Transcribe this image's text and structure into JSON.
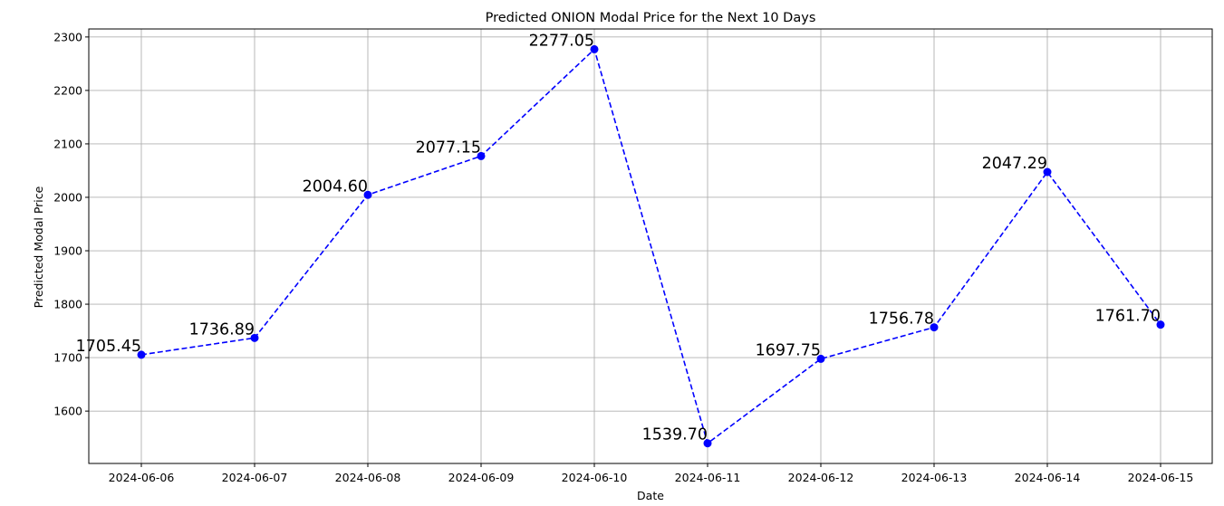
{
  "chart_data": {
    "type": "line",
    "title": "Predicted ONION Modal Price for the Next 10 Days",
    "xlabel": "Date",
    "ylabel": "Predicted Modal Price",
    "categories": [
      "2024-06-06",
      "2024-06-07",
      "2024-06-08",
      "2024-06-09",
      "2024-06-10",
      "2024-06-11",
      "2024-06-12",
      "2024-06-13",
      "2024-06-14",
      "2024-06-15"
    ],
    "series": [
      {
        "values": [
          1705.45,
          1736.89,
          2004.6,
          2077.15,
          2277.05,
          1539.7,
          1697.75,
          1756.78,
          2047.29,
          1761.7
        ],
        "labels": [
          "1705.45",
          "1736.89",
          "2004.60",
          "2077.15",
          "2277.05",
          "1539.70",
          "1697.75",
          "1756.78",
          "2047.29",
          "1761.70"
        ],
        "color": "#0000ff",
        "line_style": "dashed",
        "marker": "circle"
      }
    ],
    "ylim": [
      1502,
      2315
    ],
    "yticks": [
      "1600",
      "1700",
      "1800",
      "1900",
      "2000",
      "2100",
      "2200",
      "2300"
    ],
    "grid": true
  }
}
